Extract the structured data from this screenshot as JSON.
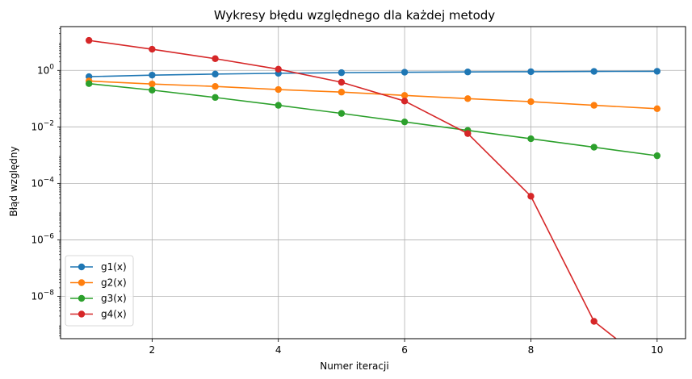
{
  "chart_data": {
    "type": "line",
    "title": "Wykresy błędu względnego dla każdej metody",
    "xlabel": "Numer iteracji",
    "ylabel": "Błąd względny",
    "xlim": [
      0.55,
      10.45
    ],
    "ylim_log10": [
      -9.5,
      1.55
    ],
    "yscale": "log",
    "grid": true,
    "legend_position": "lower-left",
    "x_ticks": [
      2,
      4,
      6,
      8,
      10
    ],
    "y_ticks": [
      {
        "exp": 0,
        "mantissa": "10",
        "sup": "0"
      },
      {
        "exp": -2,
        "mantissa": "10",
        "sup": "−2"
      },
      {
        "exp": -4,
        "mantissa": "10",
        "sup": "−4"
      },
      {
        "exp": -6,
        "mantissa": "10",
        "sup": "−6"
      },
      {
        "exp": -8,
        "mantissa": "10",
        "sup": "−8"
      }
    ],
    "x": [
      1,
      2,
      3,
      4,
      5,
      6,
      7,
      8,
      9,
      10
    ],
    "series": [
      {
        "name": "g1(x)",
        "color": "#1f77b4",
        "values": [
          0.6,
          0.68,
          0.74,
          0.79,
          0.83,
          0.86,
          0.88,
          0.9,
          0.92,
          0.93
        ]
      },
      {
        "name": "g2(x)",
        "color": "#ff7f0e",
        "values": [
          0.42,
          0.33,
          0.27,
          0.21,
          0.17,
          0.13,
          0.1,
          0.078,
          0.058,
          0.044
        ]
      },
      {
        "name": "g3(x)",
        "color": "#2ca02c",
        "values": [
          0.34,
          0.2,
          0.11,
          0.058,
          0.03,
          0.015,
          0.0075,
          0.0038,
          0.0019,
          0.00095
        ]
      },
      {
        "name": "g4(x)",
        "color": "#d62728",
        "values": [
          11.5,
          5.6,
          2.6,
          1.1,
          0.38,
          0.082,
          0.0058,
          3.5e-05,
          1.3e-09,
          0
        ]
      }
    ]
  }
}
